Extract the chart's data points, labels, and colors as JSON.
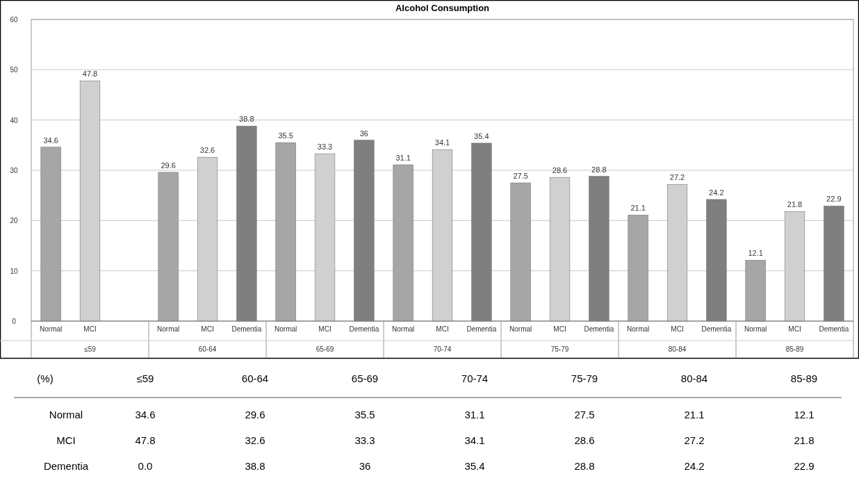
{
  "chart_data": {
    "type": "bar",
    "title": "Alcohol Consumption",
    "categories": [
      "≤59",
      "60-64",
      "65-69",
      "70-74",
      "75-79",
      "80-84",
      "85-89"
    ],
    "series": [
      {
        "name": "Normal",
        "color": "#a6a6a6",
        "values": [
          34.6,
          29.6,
          35.5,
          31.1,
          27.5,
          21.1,
          12.1
        ],
        "value_labels": [
          "34.6",
          "29.6",
          "35.5",
          "31.1",
          "27.5",
          "21.1",
          "12.1"
        ]
      },
      {
        "name": "MCI",
        "color": "#d0d0d0",
        "values": [
          47.8,
          32.6,
          33.3,
          34.1,
          28.6,
          27.2,
          21.8
        ],
        "value_labels": [
          "47.8",
          "32.6",
          "33.3",
          "34.1",
          "28.6",
          "27.2",
          "21.8"
        ]
      },
      {
        "name": "Dementia",
        "color": "#7f7f7f",
        "values": [
          0.0,
          38.8,
          36,
          35.4,
          28.8,
          24.2,
          22.9
        ],
        "value_labels": [
          "0.0",
          "38.8",
          "36",
          "35.4",
          "28.8",
          "24.2",
          "22.9"
        ]
      }
    ],
    "ylim": [
      0,
      60
    ],
    "yticks": [
      0,
      10,
      20,
      30,
      40,
      50,
      60
    ],
    "grid": "y",
    "annotations": [
      "(%)"
    ]
  }
}
